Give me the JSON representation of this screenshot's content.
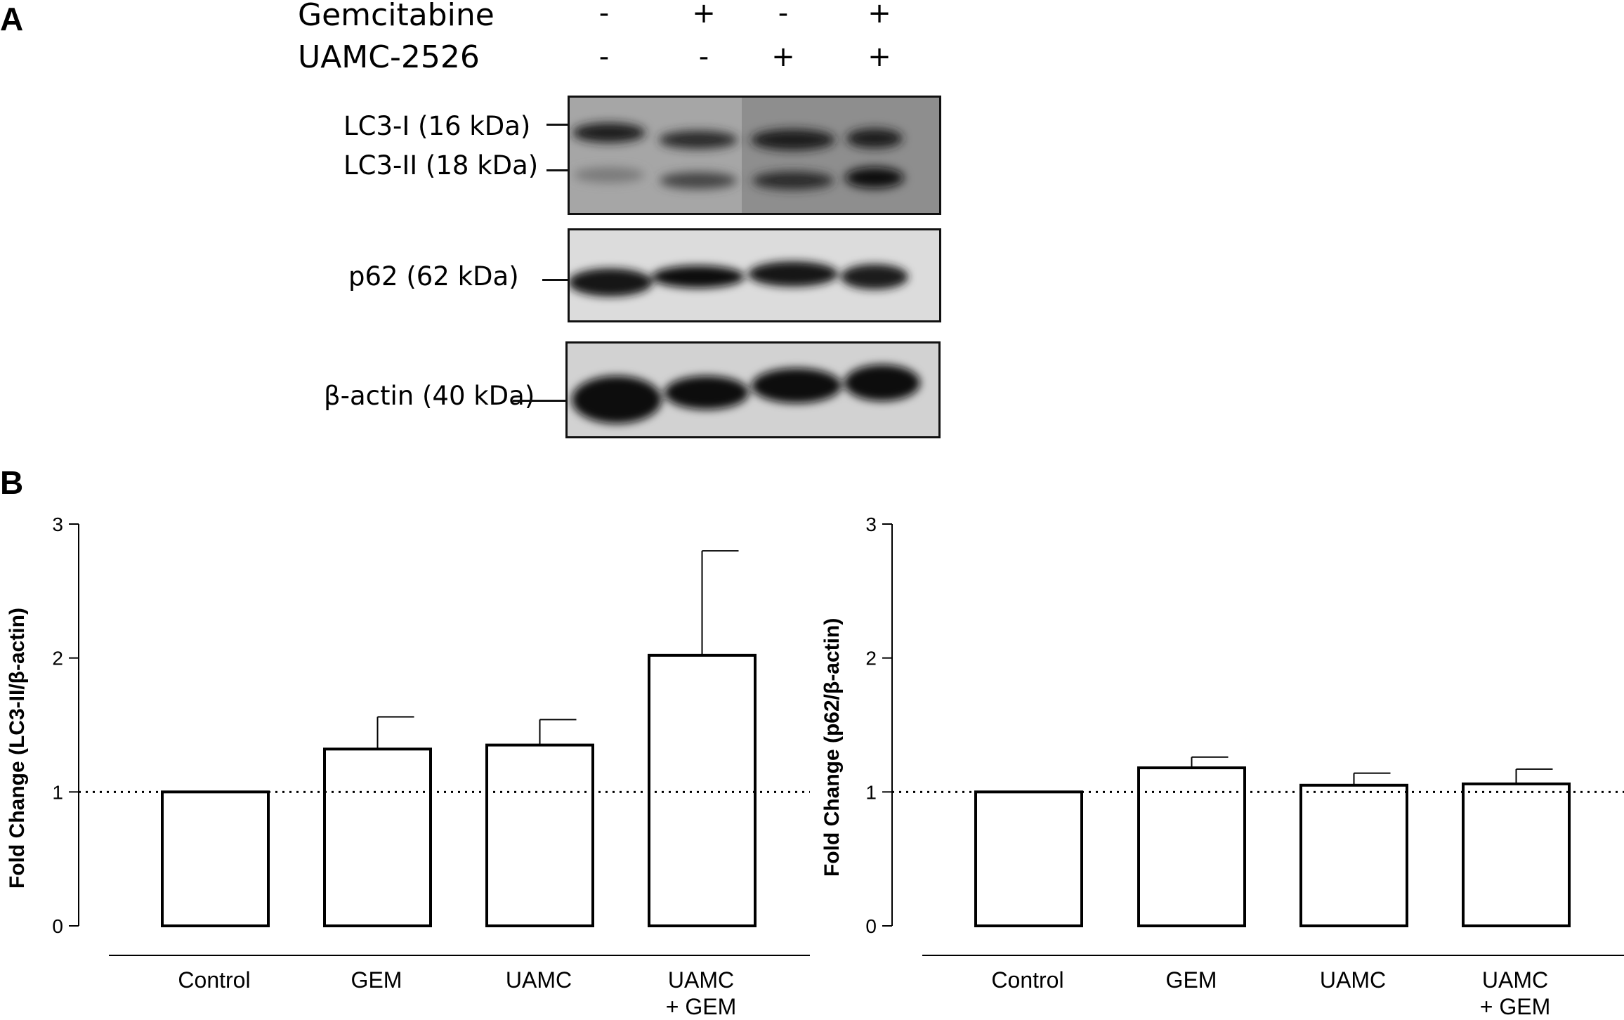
{
  "panel_a": {
    "letter": "A",
    "treatments": [
      {
        "name": "Gemcitabine",
        "lanes": [
          "-",
          "+",
          "-",
          "+"
        ]
      },
      {
        "name": "UAMC-2526",
        "lanes": [
          "-",
          "-",
          "+",
          "+"
        ]
      }
    ],
    "blots": [
      {
        "labels": [
          "LC3-I (16 kDa)",
          "LC3-II (18 kDa)"
        ]
      },
      {
        "labels": [
          "p62 (62 kDa)"
        ]
      },
      {
        "labels": [
          "β-actin (40 kDa)"
        ]
      }
    ]
  },
  "panel_b": {
    "letter": "B"
  },
  "chart_data": [
    {
      "type": "bar",
      "ylabel": "Fold Change (LC3-II/β-actin)",
      "categories": [
        "Control",
        "GEM",
        "UAMC",
        "UAMC\n+ GEM"
      ],
      "values": [
        1.0,
        1.32,
        1.35,
        2.02
      ],
      "errors": [
        0.0,
        0.24,
        0.19,
        0.78
      ],
      "ylim": [
        0,
        3
      ],
      "yticks": [
        "0",
        "1",
        "2",
        "3"
      ],
      "reference_line": 1,
      "bar_fill": "#ffffff",
      "bar_stroke": "#000000"
    },
    {
      "type": "bar",
      "ylabel": "Fold Change (p62/β-actin)",
      "categories": [
        "Control",
        "GEM",
        "UAMC",
        "UAMC\n+ GEM"
      ],
      "values": [
        1.0,
        1.18,
        1.05,
        1.06
      ],
      "errors": [
        0.0,
        0.08,
        0.09,
        0.11
      ],
      "ylim": [
        0,
        3
      ],
      "yticks": [
        "0",
        "1",
        "2",
        "3"
      ],
      "reference_line": 1,
      "bar_fill": "#ffffff",
      "bar_stroke": "#000000"
    }
  ]
}
